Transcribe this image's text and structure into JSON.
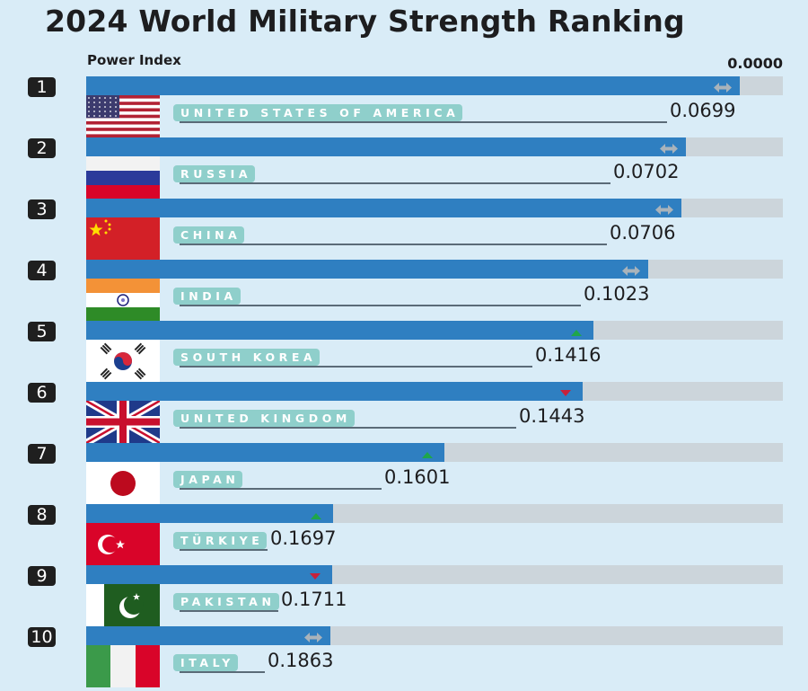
{
  "chart_data": {
    "type": "bar",
    "title": "2024 World Military Strength Ranking",
    "ylabel": "Power Index",
    "scale_max_label": "0.0000",
    "categories": [
      "UNITED STATES OF AMERICA",
      "RUSSIA",
      "CHINA",
      "INDIA",
      "SOUTH KOREA",
      "UNITED KINGDOM",
      "JAPAN",
      "TÜRKIYE",
      "PAKISTAN",
      "ITALY"
    ],
    "ranks": [
      "1",
      "2",
      "3",
      "4",
      "5",
      "6",
      "7",
      "8",
      "9",
      "10"
    ],
    "values": [
      "0.0699",
      "0.0702",
      "0.0706",
      "0.1023",
      "0.1416",
      "0.1443",
      "0.1601",
      "0.1697",
      "0.1711",
      "0.1863"
    ],
    "bar_fill_fraction": [
      0.938,
      0.861,
      0.854,
      0.807,
      0.728,
      0.713,
      0.514,
      0.355,
      0.353,
      0.351
    ],
    "trend": [
      "unchanged",
      "unchanged",
      "unchanged",
      "unchanged",
      "up",
      "down",
      "up",
      "up",
      "down",
      "unchanged"
    ],
    "flags": [
      "usa-flag",
      "russia-flag",
      "china-flag",
      "india-flag",
      "south-korea-flag",
      "uk-flag",
      "japan-flag",
      "turkiye-flag",
      "pakistan-flag",
      "italy-flag"
    ],
    "colors": {
      "bar": "#2f7fc1",
      "track": "#ccd5db",
      "up": "#1fa64a",
      "down": "#c8213a",
      "unchanged": "#a9b3bb",
      "pill": "#8fcfcb",
      "background": "#d9ecf7"
    }
  }
}
